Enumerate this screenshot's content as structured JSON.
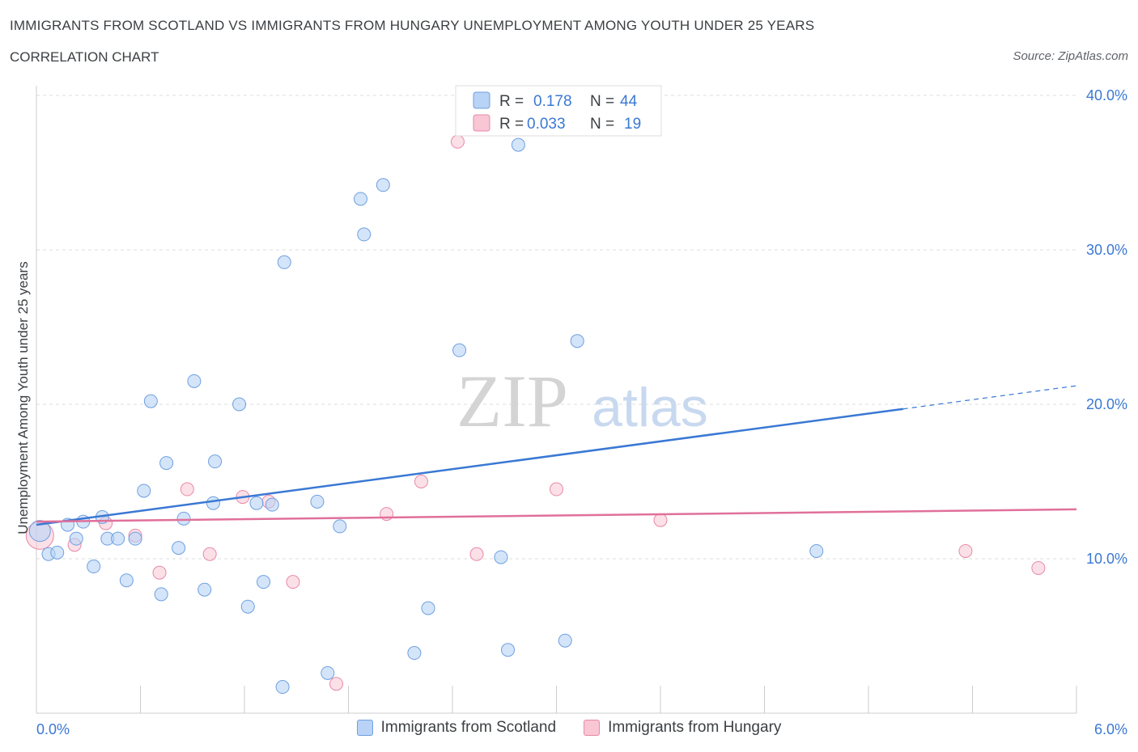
{
  "header": {
    "title": "IMMIGRANTS FROM SCOTLAND VS IMMIGRANTS FROM HUNGARY UNEMPLOYMENT AMONG YOUTH UNDER 25 YEARS",
    "subtitle": "CORRELATION CHART",
    "source": "Source: ZipAtlas.com"
  },
  "watermark": {
    "zip": "ZIP",
    "atlas": "atlas"
  },
  "colors": {
    "scotland_fill": "#b8d3f5",
    "scotland_stroke": "#6f9fe0",
    "scotland_line": "#3a78d4",
    "hungary_fill": "#f8c6d5",
    "hungary_stroke": "#e889a8",
    "hungary_line": "#e0709a",
    "axis_text": "#3a78d4",
    "grid": "#dddddd"
  },
  "legend": {
    "rows": [
      {
        "r_label": "R =",
        "r_value": "0.178",
        "n_label": "N =",
        "n_value": "44"
      },
      {
        "r_label": "R =",
        "r_value": "0.033",
        "n_label": "N =",
        "n_value": "19"
      }
    ]
  },
  "bottom_legend": {
    "scotland": "Immigrants from Scotland",
    "hungary": "Immigrants from Hungary"
  },
  "chart_data": {
    "type": "scatter",
    "title": "IMMIGRANTS FROM SCOTLAND VS IMMIGRANTS FROM HUNGARY UNEMPLOYMENT AMONG YOUTH UNDER 25 YEARS",
    "xlabel": "",
    "ylabel": "Unemployment Among Youth under 25 years",
    "xlim": [
      0,
      6
    ],
    "ylim": [
      0,
      40
    ],
    "x_tick_labels": [
      "0.0%",
      "6.0%"
    ],
    "y_tick_values": [
      10,
      20,
      30,
      40
    ],
    "y_tick_labels": [
      "10.0%",
      "20.0%",
      "30.0%",
      "40.0%"
    ],
    "series": [
      {
        "name": "Immigrants from Scotland",
        "points": [
          [
            0.02,
            11.8
          ],
          [
            0.07,
            10.3
          ],
          [
            0.12,
            10.4
          ],
          [
            0.18,
            12.2
          ],
          [
            0.23,
            11.3
          ],
          [
            0.27,
            12.4
          ],
          [
            0.33,
            9.5
          ],
          [
            0.38,
            12.7
          ],
          [
            0.41,
            11.3
          ],
          [
            0.47,
            11.3
          ],
          [
            0.52,
            8.6
          ],
          [
            0.57,
            11.3
          ],
          [
            0.62,
            14.4
          ],
          [
            0.66,
            20.2
          ],
          [
            0.72,
            7.7
          ],
          [
            0.75,
            16.2
          ],
          [
            0.82,
            10.7
          ],
          [
            0.85,
            12.6
          ],
          [
            0.91,
            21.5
          ],
          [
            0.97,
            8.0
          ],
          [
            1.02,
            13.6
          ],
          [
            1.03,
            16.3
          ],
          [
            1.17,
            20.0
          ],
          [
            1.22,
            6.9
          ],
          [
            1.27,
            13.6
          ],
          [
            1.31,
            8.5
          ],
          [
            1.36,
            13.5
          ],
          [
            1.42,
            1.7
          ],
          [
            1.43,
            29.2
          ],
          [
            1.62,
            13.7
          ],
          [
            1.68,
            2.6
          ],
          [
            1.75,
            12.1
          ],
          [
            1.87,
            33.3
          ],
          [
            1.89,
            31.0
          ],
          [
            2.0,
            34.2
          ],
          [
            2.18,
            3.9
          ],
          [
            2.26,
            6.8
          ],
          [
            2.44,
            23.5
          ],
          [
            2.68,
            10.1
          ],
          [
            2.72,
            4.1
          ],
          [
            2.78,
            36.8
          ],
          [
            3.05,
            4.7
          ],
          [
            3.12,
            24.1
          ],
          [
            4.5,
            10.5
          ]
        ],
        "trend": {
          "x_start": 0.0,
          "y_start": 12.2,
          "x_end_solid": 5.0,
          "y_end_solid": 19.7,
          "x_end_dashed": 6.0,
          "y_end_dashed": 21.2
        }
      },
      {
        "name": "Immigrants from Hungary",
        "points": [
          [
            0.02,
            11.5
          ],
          [
            0.22,
            10.9
          ],
          [
            0.4,
            12.3
          ],
          [
            0.57,
            11.5
          ],
          [
            0.71,
            9.1
          ],
          [
            0.87,
            14.5
          ],
          [
            1.0,
            10.3
          ],
          [
            1.19,
            14.0
          ],
          [
            1.34,
            13.7
          ],
          [
            1.48,
            8.5
          ],
          [
            1.73,
            1.9
          ],
          [
            2.02,
            12.9
          ],
          [
            2.22,
            15.0
          ],
          [
            2.43,
            37.0
          ],
          [
            2.54,
            10.3
          ],
          [
            3.0,
            14.5
          ],
          [
            3.6,
            12.5
          ],
          [
            5.36,
            10.5
          ],
          [
            5.78,
            9.4
          ]
        ],
        "trend": {
          "x_start": 0.0,
          "y_start": 12.4,
          "x_end": 6.0,
          "y_end": 13.2
        }
      }
    ]
  }
}
